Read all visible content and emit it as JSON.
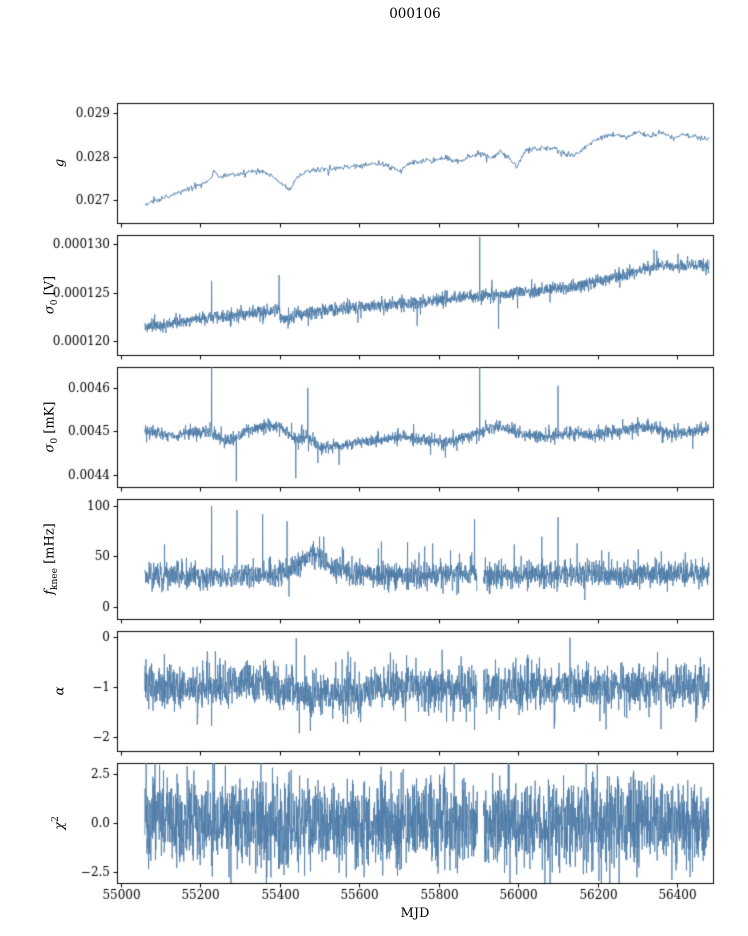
{
  "title": "000106",
  "xlabel": "MJD",
  "color": "#4d7ba7",
  "frame_color": "#000000",
  "x_axis": {
    "min": 54990,
    "max": 56490,
    "ticks": [
      55000,
      55200,
      55400,
      55600,
      55800,
      56000,
      56200,
      56400
    ],
    "tick_labels": [
      "55000",
      "55200",
      "55400",
      "55600",
      "55800",
      "56000",
      "56200",
      "56400"
    ]
  },
  "series_range": {
    "start": 55060,
    "end": 56480
  },
  "chart_data": [
    {
      "type": "line",
      "name": "g",
      "ylabel": {
        "pre": "g",
        "sub": "",
        "sup": "",
        "post": ""
      },
      "ylim": [
        0.02648,
        0.02924
      ],
      "ytick_vals": [
        0.027,
        0.028,
        0.029
      ],
      "ytick_labels": [
        "0.027",
        "0.028",
        "0.029"
      ],
      "points": 800,
      "noise": 3e-05,
      "line_width": 0.9,
      "tail": {
        "prob": 0.05,
        "mult": 2
      },
      "anchors": [
        [
          55060,
          0.02688
        ],
        [
          55080,
          0.02697
        ],
        [
          55110,
          0.02706
        ],
        [
          55140,
          0.02716
        ],
        [
          55170,
          0.02726
        ],
        [
          55200,
          0.02738
        ],
        [
          55225,
          0.02748
        ],
        [
          55235,
          0.02772
        ],
        [
          55245,
          0.02752
        ],
        [
          55270,
          0.02758
        ],
        [
          55300,
          0.02762
        ],
        [
          55330,
          0.02768
        ],
        [
          55360,
          0.02766
        ],
        [
          55385,
          0.02752
        ],
        [
          55405,
          0.02738
        ],
        [
          55425,
          0.02724
        ],
        [
          55445,
          0.02756
        ],
        [
          55470,
          0.02768
        ],
        [
          55500,
          0.0277
        ],
        [
          55530,
          0.02772
        ],
        [
          55560,
          0.02776
        ],
        [
          55590,
          0.02778
        ],
        [
          55620,
          0.02782
        ],
        [
          55650,
          0.02786
        ],
        [
          55680,
          0.02774
        ],
        [
          55705,
          0.02768
        ],
        [
          55730,
          0.02786
        ],
        [
          55760,
          0.0279
        ],
        [
          55790,
          0.02794
        ],
        [
          55820,
          0.02798
        ],
        [
          55850,
          0.02788
        ],
        [
          55880,
          0.02802
        ],
        [
          55905,
          0.02806
        ],
        [
          55930,
          0.02796
        ],
        [
          55955,
          0.02814
        ],
        [
          55975,
          0.02802
        ],
        [
          55995,
          0.02774
        ],
        [
          56015,
          0.02812
        ],
        [
          56040,
          0.02818
        ],
        [
          56070,
          0.02822
        ],
        [
          56100,
          0.02816
        ],
        [
          56130,
          0.02804
        ],
        [
          56160,
          0.02814
        ],
        [
          56185,
          0.02836
        ],
        [
          56210,
          0.02846
        ],
        [
          56240,
          0.02852
        ],
        [
          56270,
          0.02844
        ],
        [
          56300,
          0.02858
        ],
        [
          56330,
          0.02846
        ],
        [
          56360,
          0.02856
        ],
        [
          56390,
          0.02844
        ],
        [
          56420,
          0.02852
        ],
        [
          56450,
          0.02846
        ],
        [
          56480,
          0.02842
        ]
      ],
      "spikes": [],
      "gaps": []
    },
    {
      "type": "line",
      "name": "sigma0_V",
      "ylabel": {
        "pre": "σ",
        "sub": "0",
        "sup": "",
        "post": " [V]"
      },
      "ylim": [
        0.0001186,
        0.0001309
      ],
      "ytick_vals": [
        0.00012,
        0.000125,
        0.00013
      ],
      "ytick_labels": [
        "0.000120",
        "0.000125",
        "0.000130"
      ],
      "points": 2400,
      "noise": 3.2e-07,
      "line_width": 0.8,
      "tail": {
        "prob": 0.06,
        "mult": 2.2
      },
      "anchors": [
        [
          55060,
          0.00012145
        ],
        [
          55100,
          0.00012165
        ],
        [
          55140,
          0.0001219
        ],
        [
          55180,
          0.00012215
        ],
        [
          55220,
          0.0001224
        ],
        [
          55260,
          0.0001226
        ],
        [
          55300,
          0.00012275
        ],
        [
          55340,
          0.00012295
        ],
        [
          55380,
          0.0001232
        ],
        [
          55399,
          0.00012335
        ],
        [
          55401,
          0.00012225
        ],
        [
          55440,
          0.00012265
        ],
        [
          55480,
          0.00012295
        ],
        [
          55520,
          0.0001232
        ],
        [
          55560,
          0.00012335
        ],
        [
          55600,
          0.0001235
        ],
        [
          55640,
          0.00012365
        ],
        [
          55680,
          0.0001238
        ],
        [
          55720,
          0.0001239
        ],
        [
          55760,
          0.00012405
        ],
        [
          55800,
          0.0001242
        ],
        [
          55840,
          0.0001244
        ],
        [
          55880,
          0.00012455
        ],
        [
          55920,
          0.0001247
        ],
        [
          55960,
          0.0001248
        ],
        [
          56000,
          0.00012495
        ],
        [
          56040,
          0.00012515
        ],
        [
          56080,
          0.00012535
        ],
        [
          56120,
          0.00012555
        ],
        [
          56160,
          0.0001258
        ],
        [
          56200,
          0.00012615
        ],
        [
          56240,
          0.00012655
        ],
        [
          56280,
          0.000127
        ],
        [
          56320,
          0.00012745
        ],
        [
          56360,
          0.00012775
        ],
        [
          56400,
          0.0001276
        ],
        [
          56440,
          0.00012785
        ],
        [
          56480,
          0.00012775
        ]
      ],
      "spikes": [
        [
          55228,
          0.0001262
        ],
        [
          55398,
          0.0001268
        ],
        [
          55903,
          0.0001307
        ],
        [
          55950,
          0.0001213
        ]
      ],
      "gaps": []
    },
    {
      "type": "line",
      "name": "sigma0_mK",
      "ylabel": {
        "pre": "σ",
        "sub": "0",
        "sup": "",
        "post": " [mK]"
      },
      "ylim": [
        0.004372,
        0.004648
      ],
      "ytick_vals": [
        0.0044,
        0.0045,
        0.0046
      ],
      "ytick_labels": [
        "0.0044",
        "0.0045",
        "0.0046"
      ],
      "points": 2400,
      "noise": 6.5e-06,
      "line_width": 0.8,
      "tail": {
        "prob": 0.07,
        "mult": 2.4
      },
      "anchors": [
        [
          55060,
          0.004502
        ],
        [
          55100,
          0.004495
        ],
        [
          55140,
          0.00449
        ],
        [
          55180,
          0.004498
        ],
        [
          55220,
          0.0045
        ],
        [
          55260,
          0.004478
        ],
        [
          55290,
          0.004482
        ],
        [
          55320,
          0.004505
        ],
        [
          55360,
          0.00451
        ],
        [
          55400,
          0.004512
        ],
        [
          55440,
          0.00448
        ],
        [
          55470,
          0.004488
        ],
        [
          55500,
          0.004462
        ],
        [
          55540,
          0.004468
        ],
        [
          55580,
          0.004472
        ],
        [
          55620,
          0.004478
        ],
        [
          55660,
          0.004482
        ],
        [
          55700,
          0.004488
        ],
        [
          55740,
          0.004482
        ],
        [
          55780,
          0.004478
        ],
        [
          55820,
          0.004474
        ],
        [
          55860,
          0.004486
        ],
        [
          55900,
          0.004498
        ],
        [
          55940,
          0.004512
        ],
        [
          55980,
          0.004502
        ],
        [
          56020,
          0.00449
        ],
        [
          56060,
          0.004488
        ],
        [
          56100,
          0.004492
        ],
        [
          56140,
          0.004496
        ],
        [
          56180,
          0.004492
        ],
        [
          56220,
          0.004498
        ],
        [
          56260,
          0.004502
        ],
        [
          56300,
          0.004512
        ],
        [
          56340,
          0.004508
        ],
        [
          56380,
          0.004498
        ],
        [
          56420,
          0.004496
        ],
        [
          56450,
          0.004502
        ],
        [
          56480,
          0.004504
        ]
      ],
      "spikes": [
        [
          55228,
          0.004665
        ],
        [
          55290,
          0.004385
        ],
        [
          55440,
          0.004392
        ],
        [
          55470,
          0.0046
        ],
        [
          55903,
          0.004668
        ],
        [
          56100,
          0.004605
        ]
      ],
      "gaps": []
    },
    {
      "type": "line",
      "name": "f_knee",
      "ylabel": {
        "pre": "f",
        "sub": "knee",
        "sup": "",
        "post": " [mHz]"
      },
      "ylim": [
        -12,
        107
      ],
      "ytick_vals": [
        0,
        50,
        100
      ],
      "ytick_labels": [
        "0",
        "50",
        "100"
      ],
      "points": 2400,
      "noise": 6,
      "line_width": 0.8,
      "tail": {
        "prob": 0.05,
        "mult": 1.8
      },
      "tail_pos": {
        "prob": 0.02,
        "scale": 13
      },
      "anchors": [
        [
          55060,
          31
        ],
        [
          55150,
          31
        ],
        [
          55250,
          30
        ],
        [
          55350,
          31
        ],
        [
          55420,
          34
        ],
        [
          55450,
          44
        ],
        [
          55480,
          52
        ],
        [
          55510,
          46
        ],
        [
          55540,
          38
        ],
        [
          55570,
          34
        ],
        [
          55650,
          32
        ],
        [
          55750,
          31
        ],
        [
          55850,
          32
        ],
        [
          55950,
          31
        ],
        [
          56050,
          32
        ],
        [
          56150,
          33
        ],
        [
          56250,
          32
        ],
        [
          56350,
          33
        ],
        [
          56480,
          33
        ]
      ],
      "spikes": [
        [
          55110,
          62
        ],
        [
          55228,
          100
        ],
        [
          55292,
          96
        ],
        [
          55418,
          85
        ],
        [
          55560,
          57
        ],
        [
          55648,
          58
        ],
        [
          55750,
          54
        ],
        [
          55852,
          53
        ],
        [
          55890,
          87
        ],
        [
          55990,
          62
        ],
        [
          56100,
          89
        ],
        [
          56148,
          63
        ],
        [
          56210,
          56
        ],
        [
          56302,
          57
        ],
        [
          56360,
          55
        ],
        [
          56420,
          54
        ]
      ],
      "gaps": [
        [
          55896,
          55912
        ]
      ]
    },
    {
      "type": "line",
      "name": "alpha",
      "ylabel": {
        "pre": "α",
        "sub": "",
        "sup": "",
        "post": ""
      },
      "ylim": [
        -2.28,
        0.12
      ],
      "ytick_vals": [
        0,
        -1,
        -2
      ],
      "ytick_labels": [
        "0",
        "−1",
        "−2"
      ],
      "points": 2400,
      "noise": 0.21,
      "line_width": 0.8,
      "tail": {
        "prob": 0.06,
        "mult": 1.9
      },
      "anchors": [
        [
          55060,
          -1.0
        ],
        [
          55150,
          -1.02
        ],
        [
          55250,
          -0.97
        ],
        [
          55320,
          -0.94
        ],
        [
          55400,
          -1.02
        ],
        [
          55440,
          -1.1
        ],
        [
          55490,
          -1.18
        ],
        [
          55540,
          -1.2
        ],
        [
          55590,
          -1.12
        ],
        [
          55640,
          -1.04
        ],
        [
          55700,
          -1.0
        ],
        [
          55780,
          -1.05
        ],
        [
          55860,
          -1.02
        ],
        [
          55950,
          -1.02
        ],
        [
          56050,
          -1.0
        ],
        [
          56150,
          -1.03
        ],
        [
          56250,
          -1.0
        ],
        [
          56350,
          -1.0
        ],
        [
          56480,
          -0.99
        ]
      ],
      "spikes": [
        [
          55228,
          -1.78
        ],
        [
          55890,
          -1.86
        ],
        [
          55952,
          -1.66
        ]
      ],
      "gaps": [
        [
          55896,
          55912
        ]
      ]
    },
    {
      "type": "line",
      "name": "chi2",
      "ylabel": {
        "pre": "χ",
        "sub": "",
        "sup": "2",
        "post": ""
      },
      "ylim": [
        -3.05,
        3.05
      ],
      "ytick_vals": [
        2.5,
        0,
        -2.5
      ],
      "ytick_labels": [
        "2.5",
        "0.0",
        "−2.5"
      ],
      "points": 2600,
      "noise": 1.12,
      "line_width": 0.8,
      "anchors": [
        [
          55060,
          0
        ],
        [
          56480,
          0
        ]
      ],
      "spikes": [],
      "gaps": [
        [
          55898,
          55912
        ]
      ]
    }
  ]
}
